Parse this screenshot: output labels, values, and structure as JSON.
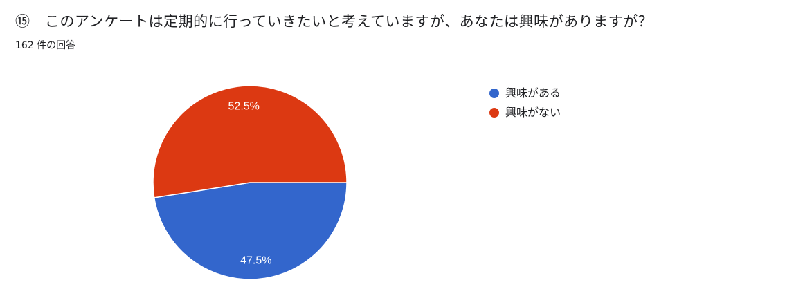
{
  "question": {
    "title": "⑮　このアンケートは定期的に行っていきたいと考えていますが、あなたは興味がありますが？",
    "response_count": "162 件の回答"
  },
  "chart_data": {
    "type": "pie",
    "categories": [
      "興味がある",
      "興味がない"
    ],
    "values": [
      47.5,
      52.5
    ],
    "data_labels": [
      "47.5%",
      "52.5%"
    ],
    "colors": [
      "#3366cc",
      "#dc3912"
    ],
    "legend_position": "right"
  }
}
